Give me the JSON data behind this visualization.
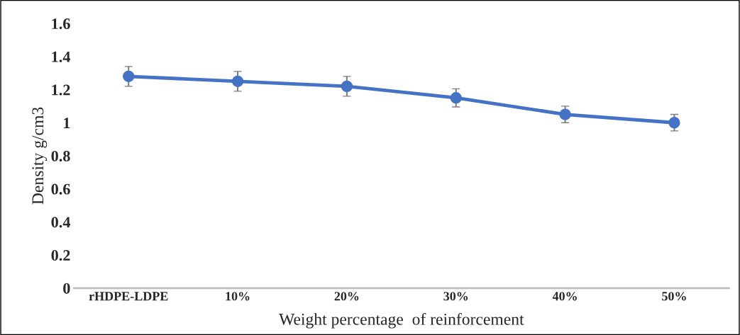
{
  "chart_data": {
    "type": "line",
    "xlabel": "Weight percentage  of reinforcement",
    "ylabel": "Density g/cm3",
    "categories": [
      "rHDPE-LDPE",
      "10%",
      "20%",
      "30%",
      "40%",
      "50%"
    ],
    "series": [
      {
        "color": "#4472c4",
        "values": [
          1.28,
          1.25,
          1.22,
          1.15,
          1.05,
          1.0
        ],
        "errors": [
          0.06,
          0.06,
          0.06,
          0.055,
          0.05,
          0.05
        ]
      }
    ],
    "ylim": [
      0,
      1.6
    ],
    "yticks": [
      0,
      0.2,
      0.4,
      0.6,
      0.8,
      1,
      1.2,
      1.4,
      1.6
    ],
    "grid": false,
    "marker": "circle",
    "line_style": "solid"
  }
}
